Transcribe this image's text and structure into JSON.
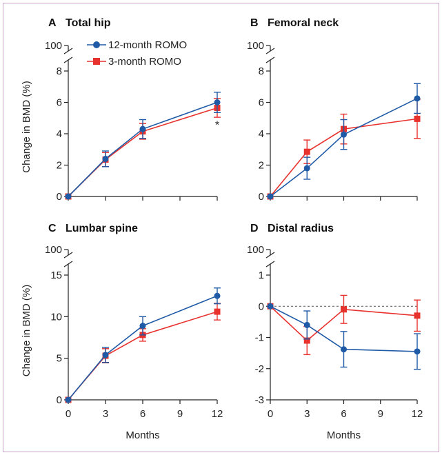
{
  "legend": [
    {
      "name": "12-month ROMO",
      "color": "#1f5aa6",
      "marker": "circle"
    },
    {
      "name": "3-month ROMO",
      "color": "#e8322e",
      "marker": "square"
    }
  ],
  "x_axis_label": "Months",
  "y_axis_label": "Change in BMD (%)",
  "chart_data": [
    {
      "type": "line",
      "letter": "A",
      "title": "Total hip",
      "x": [
        0,
        3,
        6,
        12
      ],
      "ylim": [
        0,
        8
      ],
      "yticks": [
        0,
        2,
        4,
        6,
        8
      ],
      "break_top_label": "100",
      "series": [
        {
          "name": "12-month ROMO",
          "values": [
            0,
            2.4,
            4.3,
            6.0
          ],
          "errors": [
            0,
            0.5,
            0.6,
            0.65
          ]
        },
        {
          "name": "3-month ROMO",
          "values": [
            0,
            2.35,
            4.15,
            5.65
          ],
          "errors": [
            0,
            0.45,
            0.5,
            0.6
          ]
        }
      ],
      "annotation": {
        "text": "*",
        "x": 12,
        "y": 4.6
      }
    },
    {
      "type": "line",
      "letter": "B",
      "title": "Femoral neck",
      "x": [
        0,
        3,
        6,
        12
      ],
      "ylim": [
        0,
        8
      ],
      "yticks": [
        0,
        2,
        4,
        6,
        8
      ],
      "break_top_label": "100",
      "series": [
        {
          "name": "12-month ROMO",
          "values": [
            0,
            1.8,
            3.95,
            6.25
          ],
          "errors": [
            0,
            0.7,
            0.95,
            0.95
          ]
        },
        {
          "name": "3-month ROMO",
          "values": [
            0,
            2.85,
            4.3,
            4.95
          ],
          "errors": [
            0,
            0.75,
            0.95,
            1.25
          ]
        }
      ]
    },
    {
      "type": "line",
      "letter": "C",
      "title": "Lumbar spine",
      "x": [
        0,
        3,
        6,
        12
      ],
      "ylim": [
        0,
        15
      ],
      "yticks": [
        0,
        5,
        10,
        15
      ],
      "break_top_label": "100",
      "series": [
        {
          "name": "12-month ROMO",
          "values": [
            0,
            5.4,
            8.9,
            12.5
          ],
          "errors": [
            0,
            0.9,
            1.1,
            0.95
          ]
        },
        {
          "name": "3-month ROMO",
          "values": [
            0,
            5.3,
            7.8,
            10.6
          ],
          "errors": [
            0,
            0.85,
            0.75,
            1.0
          ]
        }
      ]
    },
    {
      "type": "line",
      "letter": "D",
      "title": "Distal radius",
      "x": [
        0,
        3,
        6,
        12
      ],
      "ylim": [
        -3,
        1
      ],
      "yticks": [
        -3,
        -2,
        -1,
        0,
        1
      ],
      "break_top_label": "100",
      "reference_line": 0,
      "series": [
        {
          "name": "12-month ROMO",
          "values": [
            0,
            -0.6,
            -1.38,
            -1.45
          ],
          "errors": [
            0,
            0.45,
            0.57,
            0.57
          ]
        },
        {
          "name": "3-month ROMO",
          "values": [
            0,
            -1.1,
            -0.1,
            -0.3
          ],
          "errors": [
            0,
            0.45,
            0.45,
            0.5
          ]
        }
      ]
    }
  ]
}
